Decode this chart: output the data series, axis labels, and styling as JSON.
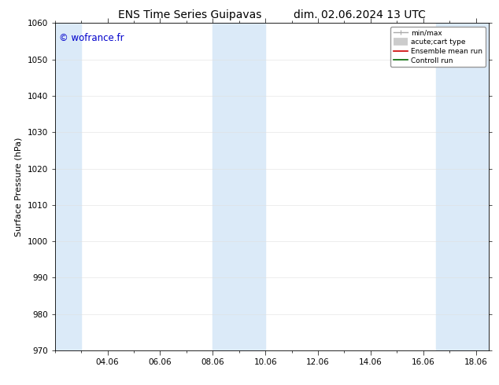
{
  "title_left": "ENS Time Series Guipavas",
  "title_right": "dim. 02.06.2024 13 UTC",
  "ylabel": "Surface Pressure (hPa)",
  "ylim": [
    970,
    1060
  ],
  "yticks": [
    970,
    980,
    990,
    1000,
    1010,
    1020,
    1030,
    1040,
    1050,
    1060
  ],
  "xlim": [
    0,
    16.5
  ],
  "xtick_labels": [
    "04.06",
    "06.06",
    "08.06",
    "10.06",
    "12.06",
    "14.06",
    "16.06",
    "18.06"
  ],
  "xtick_positions": [
    2,
    4,
    6,
    8,
    10,
    12,
    14,
    16
  ],
  "shaded_regions": [
    {
      "start": 0.0,
      "end": 1.0
    },
    {
      "start": 6.0,
      "end": 8.0
    },
    {
      "start": 14.5,
      "end": 16.5
    }
  ],
  "shade_color": "#dbeaf8",
  "watermark_text": "© wofrance.fr",
  "watermark_color": "#0000cc",
  "background_color": "#ffffff",
  "plot_bg_color": "#ffffff",
  "title_fontsize": 10,
  "axis_label_fontsize": 8,
  "tick_fontsize": 7.5
}
